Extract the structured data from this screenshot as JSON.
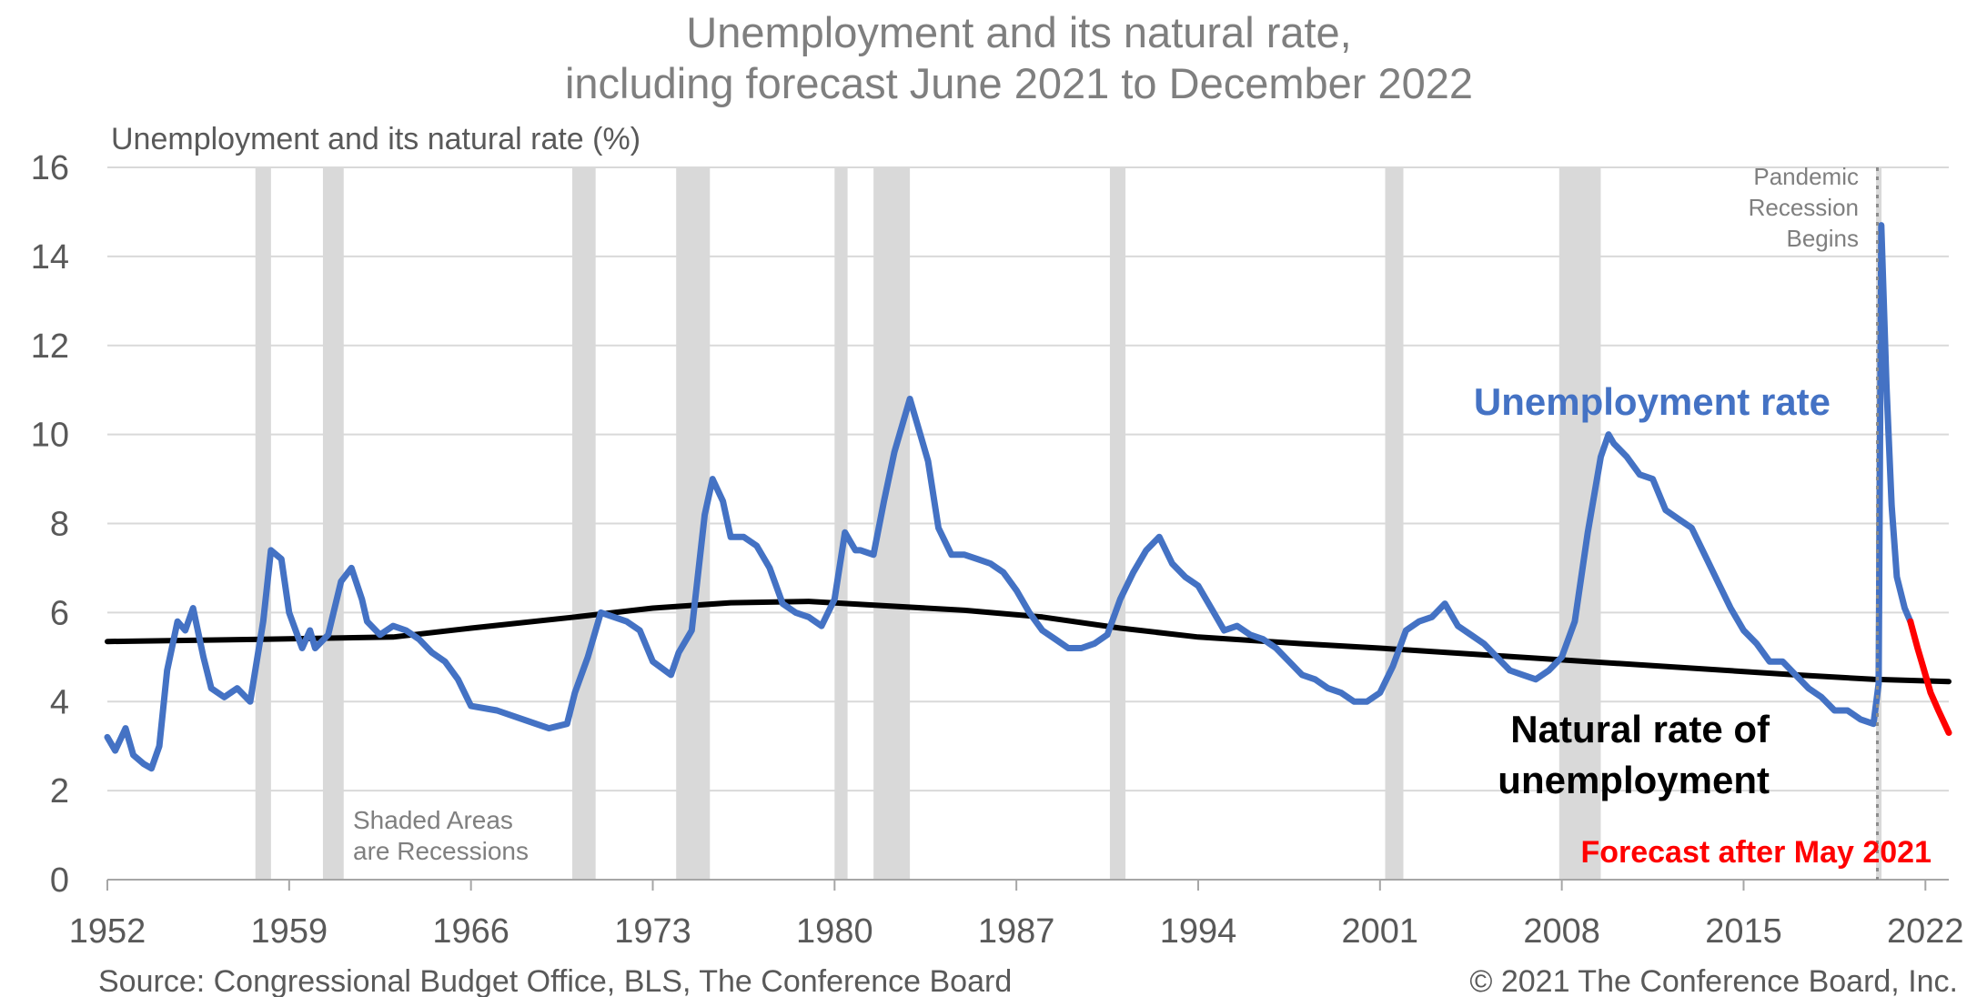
{
  "chart_data": {
    "type": "line",
    "title": "Unemployment and its natural rate,",
    "subtitle": "including forecast June 2021 to December 2022",
    "ylabel": "Unemployment and its natural rate (%)",
    "xlabel": "",
    "ylim": [
      0,
      16
    ],
    "xlim": [
      1952,
      2022.9
    ],
    "x_tick_labels": [
      "1952",
      "1959",
      "1966",
      "1973",
      "1980",
      "1987",
      "1994",
      "2001",
      "2008",
      "2015",
      "2022"
    ],
    "y_tick_labels": [
      "0",
      "2",
      "4",
      "6",
      "8",
      "10",
      "12",
      "14",
      "16"
    ],
    "grid": true,
    "recessions": [
      [
        1957.7,
        1958.3
      ],
      [
        1960.3,
        1961.1
      ],
      [
        1969.9,
        1970.8
      ],
      [
        1973.9,
        1975.2
      ],
      [
        1980.0,
        1980.5
      ],
      [
        1981.5,
        1982.9
      ],
      [
        1990.6,
        1991.2
      ],
      [
        2001.2,
        2001.9
      ],
      [
        2007.9,
        2009.5
      ],
      [
        2020.1,
        2020.3
      ]
    ],
    "pandemic_line_x": 2020.15,
    "series": [
      {
        "name": "Unemployment rate",
        "color": "#4472C4",
        "points": [
          [
            1952.0,
            3.2
          ],
          [
            1952.3,
            2.9
          ],
          [
            1952.7,
            3.4
          ],
          [
            1953.0,
            2.8
          ],
          [
            1953.4,
            2.6
          ],
          [
            1953.7,
            2.5
          ],
          [
            1954.0,
            3.0
          ],
          [
            1954.3,
            4.7
          ],
          [
            1954.7,
            5.8
          ],
          [
            1955.0,
            5.6
          ],
          [
            1955.3,
            6.1
          ],
          [
            1955.7,
            5.0
          ],
          [
            1956.0,
            4.3
          ],
          [
            1956.5,
            4.1
          ],
          [
            1957.0,
            4.3
          ],
          [
            1957.5,
            4.0
          ],
          [
            1958.0,
            5.8
          ],
          [
            1958.3,
            7.4
          ],
          [
            1958.7,
            7.2
          ],
          [
            1959.0,
            6.0
          ],
          [
            1959.5,
            5.2
          ],
          [
            1959.8,
            5.6
          ],
          [
            1960.0,
            5.2
          ],
          [
            1960.5,
            5.5
          ],
          [
            1961.0,
            6.7
          ],
          [
            1961.4,
            7.0
          ],
          [
            1961.8,
            6.3
          ],
          [
            1962.0,
            5.8
          ],
          [
            1962.5,
            5.5
          ],
          [
            1963.0,
            5.7
          ],
          [
            1963.5,
            5.6
          ],
          [
            1964.0,
            5.4
          ],
          [
            1964.5,
            5.1
          ],
          [
            1965.0,
            4.9
          ],
          [
            1965.5,
            4.5
          ],
          [
            1966.0,
            3.9
          ],
          [
            1967.0,
            3.8
          ],
          [
            1968.0,
            3.6
          ],
          [
            1968.5,
            3.5
          ],
          [
            1969.0,
            3.4
          ],
          [
            1969.7,
            3.5
          ],
          [
            1970.0,
            4.2
          ],
          [
            1970.5,
            5.0
          ],
          [
            1971.0,
            6.0
          ],
          [
            1971.5,
            5.9
          ],
          [
            1972.0,
            5.8
          ],
          [
            1972.5,
            5.6
          ],
          [
            1973.0,
            4.9
          ],
          [
            1973.7,
            4.6
          ],
          [
            1974.0,
            5.1
          ],
          [
            1974.5,
            5.6
          ],
          [
            1975.0,
            8.2
          ],
          [
            1975.3,
            9.0
          ],
          [
            1975.7,
            8.5
          ],
          [
            1976.0,
            7.7
          ],
          [
            1976.5,
            7.7
          ],
          [
            1977.0,
            7.5
          ],
          [
            1977.5,
            7.0
          ],
          [
            1978.0,
            6.2
          ],
          [
            1978.5,
            6.0
          ],
          [
            1979.0,
            5.9
          ],
          [
            1979.5,
            5.7
          ],
          [
            1980.0,
            6.3
          ],
          [
            1980.4,
            7.8
          ],
          [
            1980.8,
            7.4
          ],
          [
            1981.0,
            7.4
          ],
          [
            1981.5,
            7.3
          ],
          [
            1981.9,
            8.5
          ],
          [
            1982.3,
            9.6
          ],
          [
            1982.9,
            10.8
          ],
          [
            1983.2,
            10.2
          ],
          [
            1983.6,
            9.4
          ],
          [
            1984.0,
            7.9
          ],
          [
            1984.5,
            7.3
          ],
          [
            1985.0,
            7.3
          ],
          [
            1985.5,
            7.2
          ],
          [
            1986.0,
            7.1
          ],
          [
            1986.5,
            6.9
          ],
          [
            1987.0,
            6.5
          ],
          [
            1987.5,
            6.0
          ],
          [
            1988.0,
            5.6
          ],
          [
            1988.5,
            5.4
          ],
          [
            1989.0,
            5.2
          ],
          [
            1989.5,
            5.2
          ],
          [
            1990.0,
            5.3
          ],
          [
            1990.5,
            5.5
          ],
          [
            1991.0,
            6.3
          ],
          [
            1991.5,
            6.9
          ],
          [
            1992.0,
            7.4
          ],
          [
            1992.5,
            7.7
          ],
          [
            1993.0,
            7.1
          ],
          [
            1993.5,
            6.8
          ],
          [
            1994.0,
            6.6
          ],
          [
            1994.5,
            6.1
          ],
          [
            1995.0,
            5.6
          ],
          [
            1995.5,
            5.7
          ],
          [
            1996.0,
            5.5
          ],
          [
            1996.5,
            5.4
          ],
          [
            1997.0,
            5.2
          ],
          [
            1997.5,
            4.9
          ],
          [
            1998.0,
            4.6
          ],
          [
            1998.5,
            4.5
          ],
          [
            1999.0,
            4.3
          ],
          [
            1999.5,
            4.2
          ],
          [
            2000.0,
            4.0
          ],
          [
            2000.5,
            4.0
          ],
          [
            2001.0,
            4.2
          ],
          [
            2001.5,
            4.8
          ],
          [
            2002.0,
            5.6
          ],
          [
            2002.5,
            5.8
          ],
          [
            2003.0,
            5.9
          ],
          [
            2003.5,
            6.2
          ],
          [
            2004.0,
            5.7
          ],
          [
            2004.5,
            5.5
          ],
          [
            2005.0,
            5.3
          ],
          [
            2005.5,
            5.0
          ],
          [
            2006.0,
            4.7
          ],
          [
            2006.5,
            4.6
          ],
          [
            2007.0,
            4.5
          ],
          [
            2007.5,
            4.7
          ],
          [
            2008.0,
            5.0
          ],
          [
            2008.5,
            5.8
          ],
          [
            2009.0,
            7.8
          ],
          [
            2009.5,
            9.5
          ],
          [
            2009.8,
            10.0
          ],
          [
            2010.0,
            9.8
          ],
          [
            2010.5,
            9.5
          ],
          [
            2011.0,
            9.1
          ],
          [
            2011.5,
            9.0
          ],
          [
            2012.0,
            8.3
          ],
          [
            2012.5,
            8.1
          ],
          [
            2013.0,
            7.9
          ],
          [
            2013.5,
            7.3
          ],
          [
            2014.0,
            6.7
          ],
          [
            2014.5,
            6.1
          ],
          [
            2015.0,
            5.6
          ],
          [
            2015.5,
            5.3
          ],
          [
            2016.0,
            4.9
          ],
          [
            2016.5,
            4.9
          ],
          [
            2017.0,
            4.6
          ],
          [
            2017.5,
            4.3
          ],
          [
            2018.0,
            4.1
          ],
          [
            2018.5,
            3.8
          ],
          [
            2019.0,
            3.8
          ],
          [
            2019.5,
            3.6
          ],
          [
            2020.0,
            3.5
          ],
          [
            2020.2,
            4.4
          ],
          [
            2020.3,
            14.7
          ],
          [
            2020.5,
            11.1
          ],
          [
            2020.7,
            8.4
          ],
          [
            2020.9,
            6.8
          ],
          [
            2021.2,
            6.1
          ],
          [
            2021.42,
            5.8
          ]
        ]
      },
      {
        "name": "Natural rate of unemployment",
        "color": "#000000",
        "points": [
          [
            1952.0,
            5.35
          ],
          [
            1958.0,
            5.4
          ],
          [
            1963.0,
            5.45
          ],
          [
            1966.0,
            5.65
          ],
          [
            1970.0,
            5.9
          ],
          [
            1973.0,
            6.1
          ],
          [
            1976.0,
            6.22
          ],
          [
            1979.0,
            6.25
          ],
          [
            1982.0,
            6.15
          ],
          [
            1985.0,
            6.05
          ],
          [
            1988.0,
            5.9
          ],
          [
            1991.0,
            5.65
          ],
          [
            1994.0,
            5.45
          ],
          [
            1998.0,
            5.3
          ],
          [
            2001.0,
            5.2
          ],
          [
            2005.0,
            5.05
          ],
          [
            2009.0,
            4.9
          ],
          [
            2013.0,
            4.75
          ],
          [
            2017.0,
            4.6
          ],
          [
            2020.0,
            4.5
          ],
          [
            2022.9,
            4.45
          ]
        ]
      },
      {
        "name": "Forecast after May 2021",
        "color": "#FF0000",
        "points": [
          [
            2021.42,
            5.8
          ],
          [
            2021.7,
            5.2
          ],
          [
            2021.9,
            4.8
          ],
          [
            2022.2,
            4.2
          ],
          [
            2022.5,
            3.8
          ],
          [
            2022.9,
            3.3
          ]
        ]
      }
    ],
    "annotations": {
      "unemployment_label": "Unemployment rate",
      "natural_label_line1": "Natural rate of",
      "natural_label_line2": "unemployment",
      "forecast_label": "Forecast after May 2021",
      "pandemic_line1": "Pandemic",
      "pandemic_line2": "Recession",
      "pandemic_line3": "Begins",
      "shaded_line1": "Shaded Areas",
      "shaded_line2": "are Recessions"
    }
  },
  "source": "Source: Congressional Budget Office, BLS, The Conference Board",
  "copyright": "© 2021 The Conference Board, Inc.",
  "colors": {
    "unemployment": "#4472C4",
    "natural": "#000000",
    "forecast": "#FF0000",
    "recession": "#D9D9D9",
    "grid": "#D9D9D9"
  }
}
